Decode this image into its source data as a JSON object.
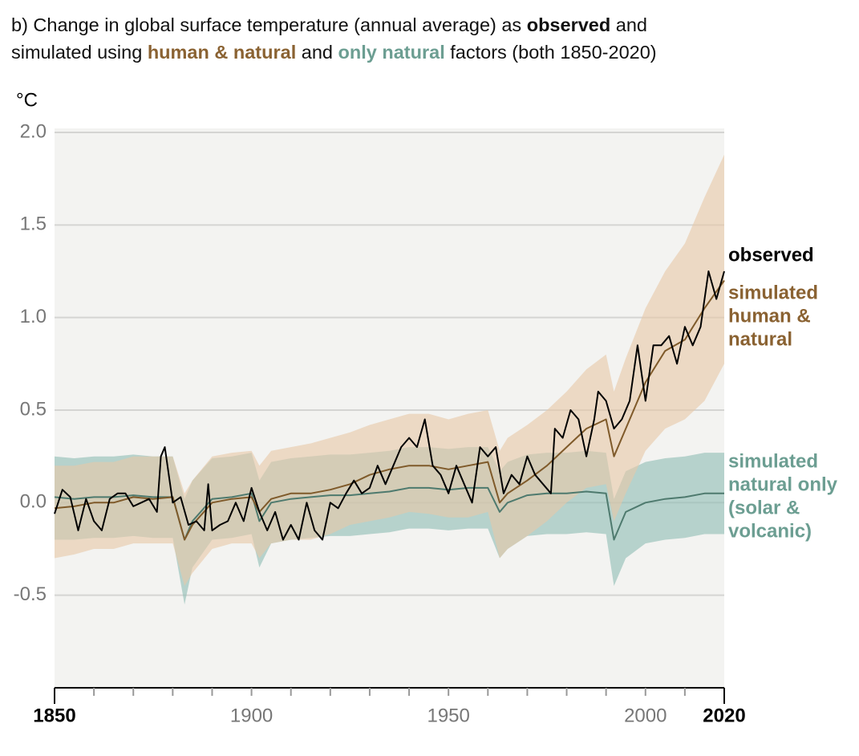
{
  "chart_data": {
    "type": "line",
    "title": [
      [
        "b) Change in global surface temperature (annual average) as ",
        "observed",
        " and"
      ],
      [
        "simulated using ",
        "human & natural",
        " and ",
        "only natural",
        " factors (both 1850-2020)"
      ]
    ],
    "y_label": "°C",
    "xlim": [
      1850,
      2020
    ],
    "xticks": [
      1850,
      1900,
      1950,
      2000,
      2020
    ],
    "xminorticks": [
      1860,
      1870,
      1880,
      1890,
      1910,
      1920,
      1930,
      1940,
      1960,
      1970,
      1980,
      1990,
      2010
    ],
    "ylim": [
      -1,
      2
    ],
    "yticks": [
      {
        "value": -0.5,
        "label": "-0.5"
      },
      {
        "value": 0,
        "label": "0.0"
      },
      {
        "value": 0.5,
        "label": "0.5"
      },
      {
        "value": 1,
        "label": "1.0"
      },
      {
        "value": 1.5,
        "label": "1.5"
      },
      {
        "value": 2,
        "label": "2.0"
      }
    ],
    "grid": true,
    "series": [
      {
        "name": [
          "simulated",
          "natural only",
          "(solar &",
          "volcanic)"
        ],
        "color": "#4e7a6e",
        "label_color": "#6c9e92",
        "band_color": "#8dbdb4",
        "x": [
          1850,
          1855,
          1860,
          1865,
          1870,
          1875,
          1880,
          1883,
          1885,
          1890,
          1895,
          1900,
          1902,
          1905,
          1910,
          1915,
          1920,
          1925,
          1930,
          1935,
          1940,
          1945,
          1950,
          1955,
          1960,
          1963,
          1965,
          1970,
          1975,
          1980,
          1985,
          1990,
          1992,
          1995,
          2000,
          2005,
          2010,
          2015,
          2020
        ],
        "values": [
          0.03,
          0.02,
          0.03,
          0.03,
          0.04,
          0.03,
          0.03,
          -0.2,
          -0.1,
          0.02,
          0.03,
          0.05,
          -0.1,
          0.0,
          0.02,
          0.03,
          0.04,
          0.04,
          0.05,
          0.06,
          0.08,
          0.08,
          0.07,
          0.08,
          0.08,
          -0.05,
          0.0,
          0.04,
          0.05,
          0.05,
          0.06,
          0.05,
          -0.2,
          -0.05,
          0.0,
          0.02,
          0.03,
          0.05,
          0.05
        ],
        "lower": [
          -0.2,
          -0.2,
          -0.19,
          -0.19,
          -0.18,
          -0.19,
          -0.19,
          -0.55,
          -0.35,
          -0.2,
          -0.19,
          -0.17,
          -0.35,
          -0.22,
          -0.2,
          -0.19,
          -0.18,
          -0.18,
          -0.17,
          -0.16,
          -0.14,
          -0.14,
          -0.15,
          -0.14,
          -0.14,
          -0.3,
          -0.25,
          -0.18,
          -0.17,
          -0.17,
          -0.16,
          -0.17,
          -0.45,
          -0.3,
          -0.22,
          -0.2,
          -0.19,
          -0.17,
          -0.17
        ],
        "upper": [
          0.25,
          0.24,
          0.25,
          0.25,
          0.26,
          0.25,
          0.25,
          0.02,
          0.12,
          0.24,
          0.25,
          0.27,
          0.12,
          0.22,
          0.24,
          0.25,
          0.26,
          0.26,
          0.27,
          0.28,
          0.3,
          0.3,
          0.29,
          0.3,
          0.3,
          0.17,
          0.22,
          0.26,
          0.27,
          0.27,
          0.28,
          0.27,
          0.02,
          0.17,
          0.22,
          0.24,
          0.25,
          0.27,
          0.27
        ]
      },
      {
        "name": [
          "simulated",
          "human &",
          "natural"
        ],
        "color": "#7f5a2a",
        "label_color": "#8a6232",
        "band_color": "#e8c8a6",
        "x": [
          1850,
          1855,
          1860,
          1865,
          1870,
          1875,
          1880,
          1883,
          1885,
          1890,
          1895,
          1900,
          1902,
          1905,
          1910,
          1915,
          1920,
          1925,
          1930,
          1935,
          1940,
          1945,
          1950,
          1955,
          1960,
          1963,
          1965,
          1970,
          1975,
          1980,
          1985,
          1990,
          1992,
          1995,
          2000,
          2005,
          2010,
          2015,
          2020
        ],
        "values": [
          -0.03,
          -0.02,
          0.0,
          0.0,
          0.03,
          0.02,
          0.03,
          -0.2,
          -0.12,
          0.0,
          0.02,
          0.03,
          -0.05,
          0.02,
          0.05,
          0.05,
          0.07,
          0.1,
          0.15,
          0.18,
          0.2,
          0.2,
          0.18,
          0.2,
          0.22,
          0.0,
          0.05,
          0.12,
          0.2,
          0.3,
          0.4,
          0.45,
          0.25,
          0.4,
          0.65,
          0.82,
          0.88,
          1.05,
          1.2
        ],
        "lower": [
          -0.3,
          -0.28,
          -0.25,
          -0.25,
          -0.22,
          -0.22,
          -0.22,
          -0.45,
          -0.38,
          -0.25,
          -0.22,
          -0.22,
          -0.3,
          -0.22,
          -0.2,
          -0.2,
          -0.17,
          -0.12,
          -0.1,
          -0.08,
          -0.05,
          -0.06,
          -0.08,
          -0.08,
          -0.05,
          -0.3,
          -0.25,
          -0.18,
          -0.1,
          0.0,
          0.08,
          0.1,
          -0.1,
          0.05,
          0.28,
          0.4,
          0.45,
          0.55,
          0.75
        ],
        "upper": [
          0.2,
          0.2,
          0.22,
          0.22,
          0.25,
          0.25,
          0.25,
          0.05,
          0.12,
          0.25,
          0.27,
          0.28,
          0.2,
          0.28,
          0.3,
          0.32,
          0.35,
          0.38,
          0.42,
          0.45,
          0.48,
          0.48,
          0.45,
          0.48,
          0.5,
          0.28,
          0.35,
          0.42,
          0.5,
          0.6,
          0.72,
          0.8,
          0.6,
          0.78,
          1.05,
          1.25,
          1.4,
          1.65,
          1.88
        ]
      },
      {
        "name": [
          "observed"
        ],
        "color": "#000000",
        "label_color": "#000000",
        "x": [
          1850,
          1852,
          1854,
          1856,
          1858,
          1860,
          1862,
          1864,
          1866,
          1868,
          1870,
          1872,
          1874,
          1876,
          1877,
          1878,
          1880,
          1882,
          1884,
          1886,
          1888,
          1889,
          1890,
          1892,
          1894,
          1896,
          1898,
          1900,
          1902,
          1904,
          1906,
          1908,
          1910,
          1912,
          1914,
          1916,
          1918,
          1920,
          1922,
          1924,
          1926,
          1928,
          1930,
          1932,
          1934,
          1936,
          1938,
          1940,
          1942,
          1944,
          1946,
          1948,
          1950,
          1952,
          1954,
          1956,
          1958,
          1960,
          1962,
          1964,
          1966,
          1968,
          1970,
          1972,
          1974,
          1976,
          1977,
          1979,
          1981,
          1983,
          1985,
          1987,
          1988,
          1990,
          1992,
          1994,
          1996,
          1998,
          2000,
          2002,
          2004,
          2006,
          2008,
          2010,
          2012,
          2014,
          2016,
          2018,
          2020
        ],
        "values": [
          -0.06,
          0.07,
          0.03,
          -0.15,
          0.02,
          -0.1,
          -0.15,
          0.02,
          0.05,
          0.05,
          -0.02,
          0.0,
          0.02,
          -0.05,
          0.25,
          0.3,
          0.0,
          0.03,
          -0.12,
          -0.1,
          -0.15,
          0.1,
          -0.15,
          -0.12,
          -0.1,
          0.0,
          -0.1,
          0.08,
          -0.05,
          -0.15,
          -0.05,
          -0.2,
          -0.12,
          -0.2,
          0.0,
          -0.15,
          -0.2,
          0.0,
          -0.03,
          0.05,
          0.12,
          0.05,
          0.08,
          0.2,
          0.1,
          0.2,
          0.3,
          0.35,
          0.3,
          0.45,
          0.2,
          0.15,
          0.05,
          0.2,
          0.1,
          0.0,
          0.3,
          0.25,
          0.3,
          0.05,
          0.15,
          0.1,
          0.25,
          0.15,
          0.1,
          0.05,
          0.4,
          0.35,
          0.5,
          0.45,
          0.25,
          0.45,
          0.6,
          0.55,
          0.4,
          0.45,
          0.55,
          0.85,
          0.55,
          0.85,
          0.85,
          0.9,
          0.75,
          0.95,
          0.85,
          0.95,
          1.25,
          1.1,
          1.25
        ]
      }
    ]
  }
}
